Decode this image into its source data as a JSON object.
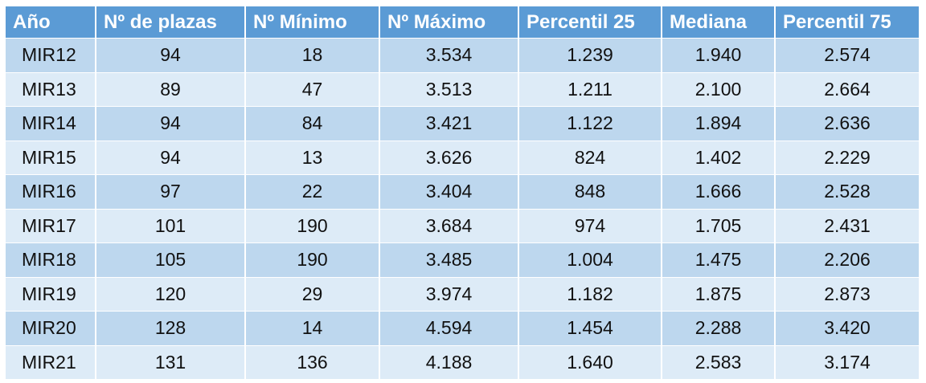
{
  "table": {
    "headers": [
      "Año",
      "Nº de plazas",
      "Nº Mínimo",
      "Nº Máximo",
      "Percentil 25",
      "Mediana",
      "Percentil 75"
    ],
    "rows": [
      [
        "MIR12",
        "94",
        "18",
        "3.534",
        "1.239",
        "1.940",
        "2.574"
      ],
      [
        "MIR13",
        "89",
        "47",
        "3.513",
        "1.211",
        "2.100",
        "2.664"
      ],
      [
        "MIR14",
        "94",
        "84",
        "3.421",
        "1.122",
        "1.894",
        "2.636"
      ],
      [
        "MIR15",
        "94",
        "13",
        "3.626",
        "824",
        "1.402",
        "2.229"
      ],
      [
        "MIR16",
        "97",
        "22",
        "3.404",
        "848",
        "1.666",
        "2.528"
      ],
      [
        "MIR17",
        "101",
        "190",
        "3.684",
        "974",
        "1.705",
        "2.431"
      ],
      [
        "MIR18",
        "105",
        "190",
        "3.485",
        "1.004",
        "1.475",
        "2.206"
      ],
      [
        "MIR19",
        "120",
        "29",
        "3.974",
        "1.182",
        "1.875",
        "2.873"
      ],
      [
        "MIR20",
        "128",
        "14",
        "4.594",
        "1.454",
        "2.288",
        "3.420"
      ],
      [
        "MIR21",
        "131",
        "136",
        "4.188",
        "1.640",
        "2.583",
        "3.174"
      ]
    ]
  },
  "colors": {
    "header_bg": "#5b9bd5",
    "row_odd_bg": "#bdd7ee",
    "row_even_bg": "#ddebf7"
  }
}
